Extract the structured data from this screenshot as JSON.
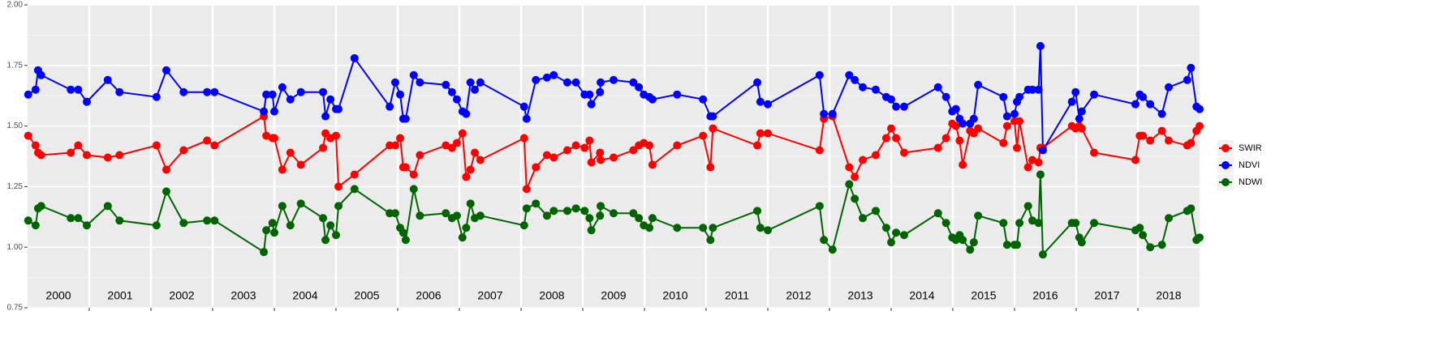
{
  "chart_data": {
    "type": "line",
    "x": [
      2000.01,
      2000.13,
      2000.17,
      2000.22,
      2000.7,
      2000.82,
      2000.96,
      2001.3,
      2001.49,
      2002.09,
      2002.25,
      2002.53,
      2002.91,
      2003.03,
      2003.83,
      2003.87,
      2003.97,
      2004.0,
      2004.13,
      2004.26,
      2004.43,
      2004.79,
      2004.83,
      2004.91,
      2005.0,
      2005.04,
      2005.3,
      2005.87,
      2005.96,
      2006.04,
      2006.09,
      2006.13,
      2006.26,
      2006.36,
      2006.78,
      2006.88,
      2006.96,
      2007.05,
      2007.11,
      2007.18,
      2007.25,
      2007.34,
      2008.05,
      2008.09,
      2008.24,
      2008.42,
      2008.53,
      2008.75,
      2008.89,
      2009.03,
      2009.11,
      2009.14,
      2009.28,
      2009.29,
      2009.5,
      2009.82,
      2009.91,
      2009.99,
      2010.08,
      2010.13,
      2010.53,
      2010.95,
      2011.07,
      2011.11,
      2011.83,
      2011.88,
      2012.0,
      2012.84,
      2012.91,
      2013.05,
      2013.32,
      2013.41,
      2013.54,
      2013.75,
      2013.92,
      2014.0,
      2014.08,
      2014.21,
      2014.76,
      2014.89,
      2014.99,
      2015.05,
      2015.11,
      2015.16,
      2015.28,
      2015.34,
      2015.41,
      2015.82,
      2015.88,
      2016.0,
      2016.04,
      2016.08,
      2016.22,
      2016.29,
      2016.39,
      2016.42,
      2016.46,
      2016.93,
      2016.99,
      2017.05,
      2017.09,
      2017.29,
      2017.96,
      2018.03,
      2018.08,
      2018.2,
      2018.39,
      2018.5,
      2018.8,
      2018.86,
      2018.95,
      2019.0
    ],
    "series": [
      {
        "name": "SWIR",
        "color": "#ff0000",
        "values": [
          1.46,
          1.42,
          1.39,
          1.38,
          1.39,
          1.42,
          1.38,
          1.37,
          1.38,
          1.42,
          1.32,
          1.4,
          1.44,
          1.42,
          1.54,
          1.46,
          1.45,
          1.45,
          1.32,
          1.39,
          1.34,
          1.41,
          1.47,
          1.45,
          1.46,
          1.25,
          1.3,
          1.42,
          1.42,
          1.45,
          1.33,
          1.33,
          1.3,
          1.38,
          1.42,
          1.41,
          1.43,
          1.47,
          1.29,
          1.32,
          1.39,
          1.36,
          1.45,
          1.24,
          1.33,
          1.38,
          1.37,
          1.4,
          1.42,
          1.41,
          1.44,
          1.35,
          1.39,
          1.36,
          1.37,
          1.4,
          1.42,
          1.43,
          1.42,
          1.34,
          1.42,
          1.46,
          1.33,
          1.49,
          1.42,
          1.47,
          1.47,
          1.4,
          1.53,
          1.54,
          1.33,
          1.29,
          1.36,
          1.38,
          1.45,
          1.49,
          1.45,
          1.39,
          1.41,
          1.45,
          1.51,
          1.5,
          1.44,
          1.34,
          1.48,
          1.47,
          1.49,
          1.43,
          1.5,
          1.52,
          1.41,
          1.52,
          1.33,
          1.36,
          1.35,
          1.41,
          1.41,
          1.5,
          1.49,
          1.5,
          1.49,
          1.39,
          1.36,
          1.46,
          1.46,
          1.44,
          1.48,
          1.44,
          1.42,
          1.43,
          1.48,
          1.5
        ]
      },
      {
        "name": "NDVI",
        "color": "#0000ff",
        "values": [
          1.63,
          1.65,
          1.73,
          1.71,
          1.65,
          1.65,
          1.6,
          1.69,
          1.64,
          1.62,
          1.73,
          1.64,
          1.64,
          1.64,
          1.56,
          1.63,
          1.63,
          1.56,
          1.66,
          1.61,
          1.64,
          1.64,
          1.54,
          1.61,
          1.57,
          1.57,
          1.78,
          1.58,
          1.68,
          1.63,
          1.53,
          1.53,
          1.71,
          1.68,
          1.67,
          1.64,
          1.61,
          1.56,
          1.55,
          1.68,
          1.65,
          1.68,
          1.58,
          1.53,
          1.69,
          1.7,
          1.71,
          1.68,
          1.68,
          1.63,
          1.63,
          1.59,
          1.64,
          1.68,
          1.69,
          1.68,
          1.66,
          1.63,
          1.62,
          1.61,
          1.63,
          1.61,
          1.54,
          1.54,
          1.68,
          1.6,
          1.59,
          1.71,
          1.55,
          1.55,
          1.71,
          1.69,
          1.66,
          1.65,
          1.62,
          1.61,
          1.58,
          1.58,
          1.66,
          1.62,
          1.56,
          1.57,
          1.53,
          1.51,
          1.51,
          1.53,
          1.67,
          1.62,
          1.54,
          1.55,
          1.6,
          1.62,
          1.65,
          1.65,
          1.65,
          1.83,
          1.4,
          1.6,
          1.64,
          1.53,
          1.56,
          1.63,
          1.59,
          1.63,
          1.62,
          1.59,
          1.55,
          1.66,
          1.69,
          1.74,
          1.58,
          1.57
        ]
      },
      {
        "name": "NDWI",
        "color": "#006400",
        "values": [
          1.11,
          1.09,
          1.16,
          1.17,
          1.12,
          1.12,
          1.09,
          1.17,
          1.11,
          1.09,
          1.23,
          1.1,
          1.11,
          1.11,
          0.98,
          1.07,
          1.1,
          1.06,
          1.17,
          1.09,
          1.18,
          1.12,
          1.03,
          1.09,
          1.05,
          1.17,
          1.24,
          1.14,
          1.14,
          1.08,
          1.06,
          1.03,
          1.24,
          1.13,
          1.14,
          1.12,
          1.13,
          1.04,
          1.08,
          1.18,
          1.12,
          1.13,
          1.09,
          1.16,
          1.18,
          1.13,
          1.15,
          1.15,
          1.16,
          1.15,
          1.12,
          1.07,
          1.13,
          1.17,
          1.14,
          1.14,
          1.12,
          1.09,
          1.08,
          1.12,
          1.08,
          1.08,
          1.03,
          1.08,
          1.15,
          1.08,
          1.07,
          1.17,
          1.03,
          0.99,
          1.26,
          1.2,
          1.12,
          1.15,
          1.08,
          1.02,
          1.06,
          1.05,
          1.14,
          1.1,
          1.04,
          1.03,
          1.05,
          1.03,
          0.99,
          1.02,
          1.13,
          1.1,
          1.01,
          1.01,
          1.01,
          1.1,
          1.17,
          1.11,
          1.1,
          1.3,
          0.97,
          1.1,
          1.1,
          1.04,
          1.02,
          1.1,
          1.07,
          1.08,
          1.05,
          1.0,
          1.01,
          1.12,
          1.15,
          1.16,
          1.03,
          1.04
        ]
      }
    ],
    "xlim": [
      2000,
      2019
    ],
    "xticks": [
      {
        "value": 2000.5,
        "label": "2000"
      },
      {
        "value": 2001.5,
        "label": "2001"
      },
      {
        "value": 2002.5,
        "label": "2002"
      },
      {
        "value": 2003.5,
        "label": "2003"
      },
      {
        "value": 2004.5,
        "label": "2004"
      },
      {
        "value": 2005.5,
        "label": "2005"
      },
      {
        "value": 2006.5,
        "label": "2006"
      },
      {
        "value": 2007.5,
        "label": "2007"
      },
      {
        "value": 2008.5,
        "label": "2008"
      },
      {
        "value": 2009.5,
        "label": "2009"
      },
      {
        "value": 2010.5,
        "label": "2010"
      },
      {
        "value": 2011.5,
        "label": "2011"
      },
      {
        "value": 2012.5,
        "label": "2012"
      },
      {
        "value": 2013.5,
        "label": "2013"
      },
      {
        "value": 2014.5,
        "label": "2014"
      },
      {
        "value": 2015.5,
        "label": "2015"
      },
      {
        "value": 2016.5,
        "label": "2016"
      },
      {
        "value": 2017.5,
        "label": "2017"
      },
      {
        "value": 2018.5,
        "label": "2018"
      }
    ],
    "ylim": [
      0.75,
      2
    ],
    "yticks": [
      0.75,
      {
        "value": 1,
        "label": "1.00"
      },
      1.25,
      {
        "value": 1.5,
        "label": "1.50"
      },
      1.75,
      {
        "value": 2,
        "label": "2.00"
      }
    ],
    "grid": true,
    "legend": "right"
  }
}
